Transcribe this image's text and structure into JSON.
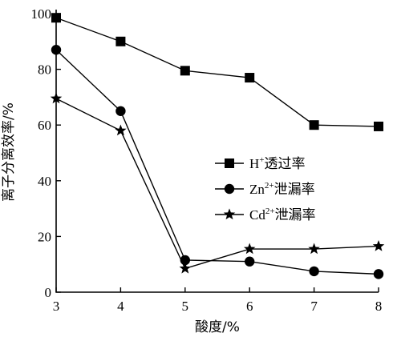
{
  "chart_data": {
    "type": "line",
    "xlabel": "酸度/%",
    "ylabel": "离子分离效率/%",
    "x": [
      3,
      4,
      5,
      6,
      7,
      8
    ],
    "xlim": [
      3,
      8
    ],
    "ylim": [
      0,
      100
    ],
    "xticks": [
      "3",
      "4",
      "5",
      "6",
      "7",
      "8"
    ],
    "yticks": [
      "0",
      "20",
      "40",
      "60",
      "80",
      "100"
    ],
    "grid": false,
    "legend_position": "center-right",
    "series": [
      {
        "name": "H⁺透过率",
        "ion": "H",
        "charge": "+",
        "suffix": "透过率",
        "marker": "square",
        "values": [
          98.5,
          90,
          79.5,
          77,
          60,
          59.5
        ]
      },
      {
        "name": "Zn²⁺泄漏率",
        "ion": "Zn",
        "charge": "2+",
        "suffix": "泄漏率",
        "marker": "circle",
        "values": [
          87,
          65,
          11.5,
          11,
          7.5,
          6.5
        ]
      },
      {
        "name": "Cd²⁺泄漏率",
        "ion": "Cd",
        "charge": "2+",
        "suffix": "泄漏率",
        "marker": "star",
        "values": [
          69.5,
          58,
          8.5,
          15.5,
          15.5,
          16.5
        ]
      }
    ]
  }
}
